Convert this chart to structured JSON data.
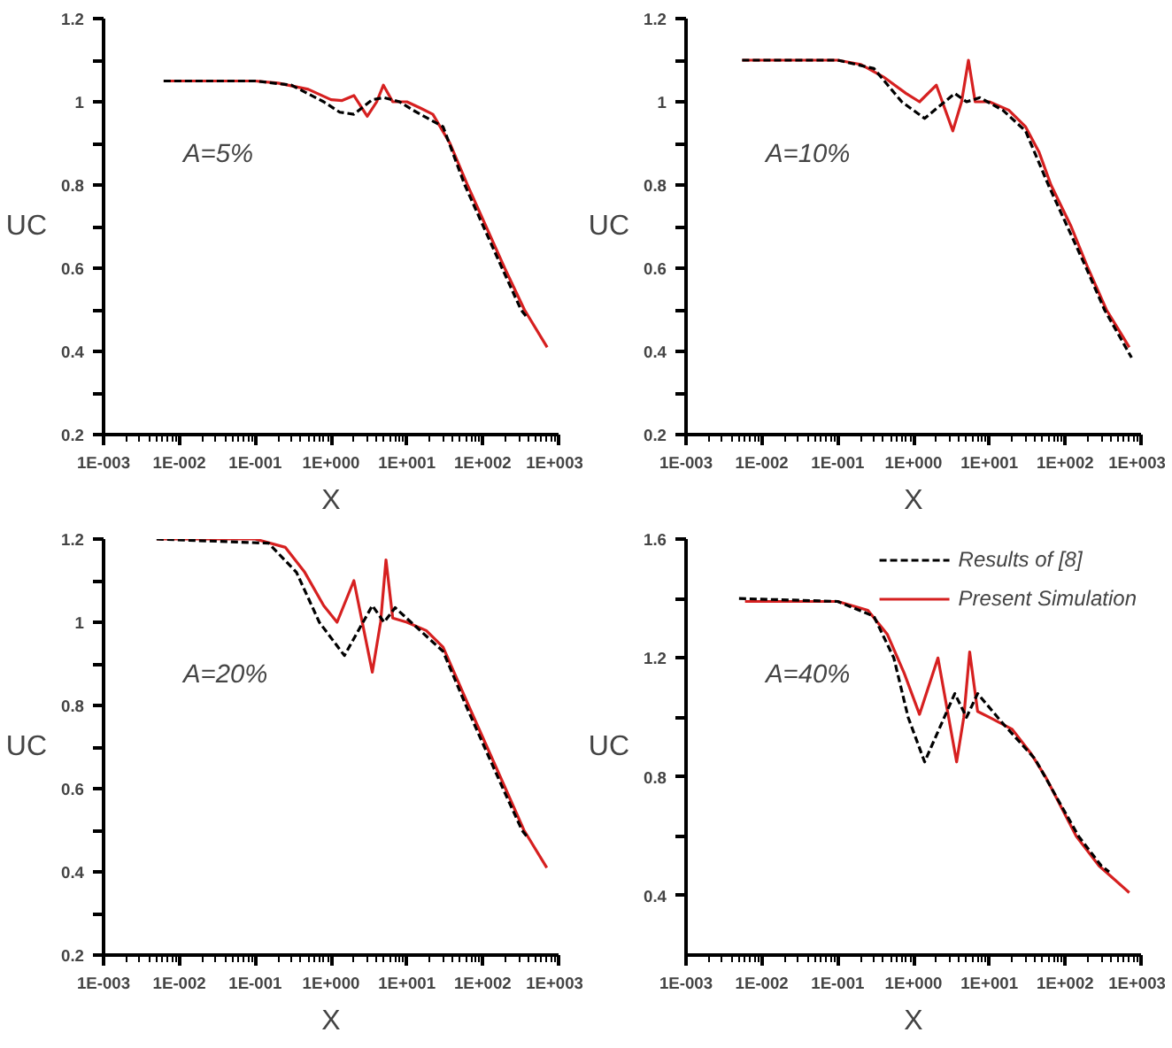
{
  "chart_data": [
    {
      "type": "line",
      "annotations": [
        "A=5%"
      ],
      "xlabel": "X",
      "ylabel": "UC",
      "log": "x",
      "legend": false,
      "xlim": [
        0.001,
        1000
      ],
      "xticks": [
        {
          "value": 0.001,
          "label": "1E-003"
        },
        {
          "value": 0.01,
          "label": "1E-002"
        },
        {
          "value": 0.1,
          "label": "1E-001"
        },
        {
          "value": 1,
          "label": "1E+000"
        },
        {
          "value": 10,
          "label": "1E+001"
        },
        {
          "value": 100,
          "label": "1E+002"
        },
        {
          "value": 1000,
          "label": "1E+003"
        }
      ],
      "ylim": [
        0.2,
        1.2
      ],
      "yticks": [
        0.2,
        {
          "value": 0.3,
          "label": null
        },
        0.4,
        {
          "value": 0.5,
          "label": null
        },
        0.6,
        {
          "value": 0.7,
          "label": null
        },
        0.8,
        {
          "value": 0.9,
          "label": null
        },
        1,
        {
          "value": 1.1,
          "label": null
        },
        1.2
      ],
      "series": [
        {
          "color": "#000000",
          "line_style": "dashed",
          "x": [
            0.0062,
            0.1,
            0.3,
            0.8,
            1.3,
            2,
            3.5,
            5,
            8,
            12,
            30,
            58,
            180,
            320,
            390
          ],
          "values": [
            1.05,
            1.05,
            1.04,
            1.0,
            0.975,
            0.97,
            1.005,
            1.01,
            1.0,
            0.98,
            0.94,
            0.8,
            0.6,
            0.5,
            0.48
          ]
        },
        {
          "color": "#d62020",
          "line_style": "solid",
          "x": [
            0.0062,
            0.1,
            0.2,
            0.5,
            1.0,
            1.4,
            2,
            3,
            4,
            4.9,
            6.5,
            10,
            15,
            22,
            37,
            63,
            195,
            355,
            708
          ],
          "values": [
            1.05,
            1.05,
            1.045,
            1.03,
            1.005,
            1.003,
            1.015,
            0.965,
            1.0,
            1.04,
            1.0,
            1.0,
            0.985,
            0.97,
            0.9,
            0.8,
            0.6,
            0.5,
            0.41
          ]
        }
      ]
    },
    {
      "type": "line",
      "annotations": [
        "A=10%"
      ],
      "xlabel": "X",
      "ylabel": "UC",
      "log": "x",
      "legend": false,
      "xlim": [
        0.001,
        1000
      ],
      "xticks": [
        {
          "value": 0.001,
          "label": "1E-003"
        },
        {
          "value": 0.01,
          "label": "1E-002"
        },
        {
          "value": 0.1,
          "label": "1E-001"
        },
        {
          "value": 1,
          "label": "1E+000"
        },
        {
          "value": 10,
          "label": "1E+001"
        },
        {
          "value": 100,
          "label": "1E+002"
        },
        {
          "value": 1000,
          "label": "1E+003"
        }
      ],
      "ylim": [
        0.2,
        1.2
      ],
      "yticks": [
        0.2,
        {
          "value": 0.3,
          "label": null
        },
        0.4,
        {
          "value": 0.5,
          "label": null
        },
        0.6,
        {
          "value": 0.7,
          "label": null
        },
        0.8,
        {
          "value": 0.9,
          "label": null
        },
        1,
        {
          "value": 1.1,
          "label": null
        },
        1.2
      ],
      "series": [
        {
          "color": "#000000",
          "line_style": "dashed",
          "x": [
            0.0055,
            0.1,
            0.3,
            0.7,
            1.4,
            3.5,
            5,
            7.5,
            15,
            30,
            60,
            190,
            330,
            750
          ],
          "values": [
            1.1,
            1.1,
            1.08,
            1.0,
            0.96,
            1.02,
            1.0,
            1.01,
            0.98,
            0.93,
            0.8,
            0.6,
            0.5,
            0.385
          ]
        },
        {
          "color": "#d62020",
          "line_style": "solid",
          "x": [
            0.0055,
            0.1,
            0.2,
            0.4,
            0.8,
            1.2,
            2.0,
            3.3,
            4.3,
            5.3,
            6.5,
            10,
            18,
            30,
            45,
            65,
            120,
            200,
            350,
            700
          ],
          "values": [
            1.1,
            1.1,
            1.09,
            1.06,
            1.02,
            1.0,
            1.04,
            0.93,
            1.0,
            1.1,
            1.0,
            1.0,
            0.98,
            0.94,
            0.88,
            0.8,
            0.7,
            0.6,
            0.5,
            0.41
          ]
        }
      ]
    },
    {
      "type": "line",
      "annotations": [
        "A=20%"
      ],
      "xlabel": "X",
      "ylabel": "UC",
      "log": "x",
      "legend": false,
      "xlim": [
        0.001,
        1000
      ],
      "xticks": [
        {
          "value": 0.001,
          "label": "1E-003"
        },
        {
          "value": 0.01,
          "label": "1E-002"
        },
        {
          "value": 0.1,
          "label": "1E-001"
        },
        {
          "value": 1,
          "label": "1E+000"
        },
        {
          "value": 10,
          "label": "1E+001"
        },
        {
          "value": 100,
          "label": "1E+002"
        },
        {
          "value": 1000,
          "label": "1E+003"
        }
      ],
      "ylim": [
        0.2,
        1.2
      ],
      "yticks": [
        0.2,
        {
          "value": 0.3,
          "label": null
        },
        0.4,
        {
          "value": 0.5,
          "label": null
        },
        0.6,
        {
          "value": 0.7,
          "label": null
        },
        0.8,
        {
          "value": 0.9,
          "label": null
        },
        1,
        {
          "value": 1.1,
          "label": null
        },
        1.2
      ],
      "series": [
        {
          "color": "#000000",
          "line_style": "dashed",
          "x": [
            0.005,
            0.15,
            0.35,
            0.7,
            1.5,
            3.5,
            5,
            7,
            15,
            30,
            60,
            185,
            330,
            400
          ],
          "values": [
            1.2,
            1.19,
            1.12,
            1.0,
            0.92,
            1.04,
            1.0,
            1.035,
            0.98,
            0.93,
            0.8,
            0.6,
            0.5,
            0.48
          ]
        },
        {
          "color": "#d62020",
          "line_style": "solid",
          "x": [
            0.005,
            0.1,
            0.25,
            0.45,
            0.8,
            1.2,
            2.0,
            3.5,
            4.5,
            5.3,
            6.5,
            10,
            18,
            30,
            65,
            200,
            350,
            700
          ],
          "values": [
            1.2,
            1.2,
            1.18,
            1.12,
            1.04,
            1.0,
            1.1,
            0.88,
            1.0,
            1.15,
            1.01,
            1.0,
            0.98,
            0.94,
            0.8,
            0.6,
            0.5,
            0.41
          ]
        }
      ]
    },
    {
      "type": "line",
      "annotations": [
        "A=40%"
      ],
      "xlabel": "X",
      "ylabel": "UC",
      "log": "x",
      "legend": "top right",
      "xlim": [
        0.001,
        1000
      ],
      "xticks": [
        {
          "value": 0.001,
          "label": "1E-003"
        },
        {
          "value": 0.01,
          "label": "1E-002"
        },
        {
          "value": 0.1,
          "label": "1E-001"
        },
        {
          "value": 1,
          "label": "1E+000"
        },
        {
          "value": 10,
          "label": "1E+001"
        },
        {
          "value": 100,
          "label": "1E+002"
        },
        {
          "value": 1000,
          "label": "1E+003"
        }
      ],
      "ylim": [
        0.2,
        1.6
      ],
      "yticks": [
        0.4,
        {
          "value": 0.6,
          "label": null
        },
        0.8,
        {
          "value": 1.0,
          "label": null
        },
        1.2,
        {
          "value": 1.4,
          "label": null
        },
        1.6
      ],
      "series": [
        {
          "name": "Results of [8]",
          "color": "#000000",
          "line_style": "dashed",
          "x": [
            0.005,
            0.1,
            0.3,
            0.55,
            0.85,
            1.4,
            3.5,
            5.0,
            7,
            15,
            40,
            150,
            300,
            380
          ],
          "values": [
            1.4,
            1.39,
            1.34,
            1.2,
            1.0,
            0.85,
            1.08,
            1.0,
            1.08,
            0.98,
            0.86,
            0.6,
            0.5,
            0.48
          ]
        },
        {
          "name": "Present Simulation",
          "color": "#d62020",
          "line_style": "solid",
          "x": [
            0.006,
            0.1,
            0.25,
            0.45,
            0.75,
            1.2,
            2.1,
            3.7,
            4.6,
            5.5,
            7,
            10,
            20,
            35,
            55,
            140,
            280,
            700
          ],
          "values": [
            1.39,
            1.39,
            1.36,
            1.28,
            1.15,
            1.01,
            1.2,
            0.85,
            1.0,
            1.22,
            1.02,
            1.0,
            0.96,
            0.88,
            0.8,
            0.6,
            0.5,
            0.41
          ]
        }
      ]
    }
  ]
}
